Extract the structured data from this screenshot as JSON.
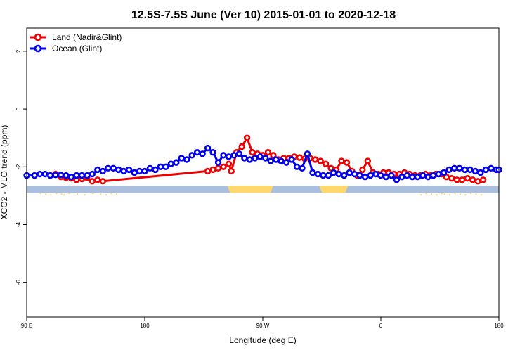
{
  "chart_data": {
    "type": "line",
    "title": "12.5S-7.5S June (Ver 10)   2015-01-01 to 2020-12-18",
    "xlabel": "Longitude (deg E)",
    "ylabel": "XCO2 - MLO trend (ppm)",
    "xlim": [
      90,
      450
    ],
    "ylim": [
      -7.2,
      2.8
    ],
    "x_ticks": [
      {
        "value": 90,
        "label": "90 E"
      },
      {
        "value": 180,
        "label": "180"
      },
      {
        "value": 270,
        "label": "90 W"
      },
      {
        "value": 360,
        "label": "0"
      },
      {
        "value": 450,
        "label": "180"
      }
    ],
    "x_ticks_extra": [
      {
        "value": 90,
        "label": "90 E"
      }
    ],
    "y_ticks": [
      {
        "value": 2,
        "label": "2"
      },
      {
        "value": 0,
        "label": "0"
      },
      {
        "value": -2,
        "label": "-2"
      },
      {
        "value": -4,
        "label": "-4"
      },
      {
        "value": -6,
        "label": "-6"
      }
    ],
    "grid": false,
    "legend_position": "top-left",
    "surface_band": {
      "y_top": -2.65,
      "y_bottom": -2.9,
      "ocean_color": "#a9bfdd",
      "land_color": "#ffd86b"
    },
    "land_segments": [
      [
        243,
        278
      ],
      [
        313,
        335
      ]
    ],
    "land_speckles_x": [
      100,
      104,
      108,
      112,
      116,
      118,
      122,
      128,
      134,
      140,
      146,
      150,
      154,
      158,
      390,
      394,
      398,
      402,
      406,
      408,
      412,
      416,
      420,
      424,
      428,
      432,
      436
    ],
    "series": [
      {
        "name": "Land (Nadir&Glint)",
        "color": "#ee0000",
        "x": [
          108,
          112,
          116,
          120,
          124,
          128,
          132,
          136,
          140,
          144,
          148,
          228,
          232,
          236,
          240,
          244,
          246,
          250,
          254,
          258,
          262,
          266,
          270,
          274,
          278,
          282,
          286,
          290,
          294,
          298,
          302,
          306,
          310,
          314,
          318,
          322,
          326,
          330,
          334,
          338,
          342,
          346,
          350,
          354,
          358,
          362,
          366,
          370,
          374,
          378,
          382,
          386,
          390,
          394,
          398,
          402,
          406,
          410,
          414,
          418,
          422,
          426,
          430,
          434,
          438
        ],
        "y": [
          -2.3,
          -2.25,
          -2.35,
          -2.38,
          -2.4,
          -2.45,
          -2.42,
          -2.38,
          -2.5,
          -2.45,
          -2.5,
          -2.15,
          -2.1,
          -2.05,
          -2.0,
          -1.9,
          -2.15,
          -1.5,
          -1.3,
          -1.0,
          -1.5,
          -1.55,
          -1.6,
          -1.5,
          -1.6,
          -1.75,
          -1.7,
          -1.7,
          -1.65,
          -1.68,
          -1.72,
          -1.7,
          -1.75,
          -1.8,
          -1.9,
          -2.05,
          -2.1,
          -1.8,
          -1.85,
          -2.15,
          -2.3,
          -2.1,
          -1.8,
          -2.2,
          -2.25,
          -2.2,
          -2.2,
          -2.25,
          -2.25,
          -2.2,
          -2.25,
          -2.3,
          -2.3,
          -2.25,
          -2.3,
          -2.25,
          -2.25,
          -2.35,
          -2.4,
          -2.45,
          -2.45,
          -2.4,
          -2.45,
          -2.5,
          -2.45
        ]
      },
      {
        "name": "Ocean (Glint)",
        "color": "#0000ee",
        "x": [
          90,
          96,
          100,
          104,
          108,
          112,
          116,
          120,
          124,
          128,
          132,
          136,
          140,
          144,
          148,
          152,
          156,
          160,
          164,
          168,
          172,
          176,
          180,
          184,
          188,
          192,
          196,
          200,
          204,
          208,
          212,
          216,
          220,
          224,
          228,
          232,
          236,
          240,
          244,
          248,
          252,
          256,
          260,
          264,
          268,
          272,
          276,
          280,
          284,
          288,
          292,
          296,
          300,
          304,
          308,
          312,
          316,
          320,
          324,
          328,
          332,
          336,
          340,
          344,
          348,
          352,
          356,
          360,
          364,
          368,
          372,
          376,
          380,
          384,
          388,
          392,
          396,
          400,
          404,
          408,
          412,
          416,
          420,
          424,
          428,
          432,
          436,
          440,
          444,
          448,
          450
        ],
        "y": [
          -2.3,
          -2.3,
          -2.25,
          -2.25,
          -2.3,
          -2.28,
          -2.28,
          -2.3,
          -2.35,
          -2.3,
          -2.3,
          -2.3,
          -2.25,
          -2.1,
          -2.15,
          -2.05,
          -2.05,
          -2.1,
          -2.15,
          -2.1,
          -2.2,
          -2.15,
          -2.15,
          -2.05,
          -2.1,
          -2.0,
          -2.0,
          -1.9,
          -1.85,
          -1.7,
          -1.75,
          -1.6,
          -1.5,
          -1.55,
          -1.35,
          -1.5,
          -1.85,
          -1.6,
          -1.65,
          -1.6,
          -1.55,
          -1.7,
          -1.75,
          -1.7,
          -1.65,
          -1.7,
          -1.8,
          -1.75,
          -1.8,
          -1.85,
          -1.75,
          -2.0,
          -2.05,
          -1.55,
          -2.2,
          -2.25,
          -2.3,
          -2.3,
          -2.2,
          -2.25,
          -2.3,
          -2.2,
          -2.25,
          -2.3,
          -2.35,
          -2.3,
          -2.25,
          -2.3,
          -2.35,
          -2.3,
          -2.45,
          -2.35,
          -2.3,
          -2.35,
          -2.35,
          -2.3,
          -2.35,
          -2.3,
          -2.25,
          -2.2,
          -2.1,
          -2.05,
          -2.05,
          -2.1,
          -2.1,
          -2.15,
          -2.2,
          -2.1,
          -2.05,
          -2.1,
          -2.1
        ]
      }
    ]
  }
}
